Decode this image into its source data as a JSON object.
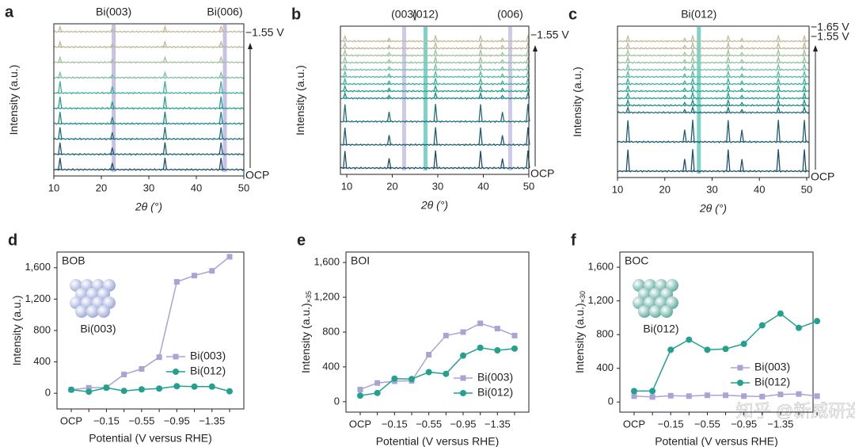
{
  "chart_data": [
    {
      "type": "xrd",
      "letter": "a",
      "ylabel": "Intensity (a.u.)",
      "xlabel": "2θ (°)",
      "xlim": [
        10,
        50
      ],
      "xticks": [
        10,
        20,
        30,
        40,
        50
      ],
      "bands": [
        {
          "x": 22.6,
          "label": "Bi(003)",
          "color": "#b9b2dd"
        },
        {
          "x": 46,
          "label": "Bi(006)",
          "color": "#b9b2dd"
        }
      ],
      "top_labels": [
        "−1.55 V"
      ],
      "bottom_label": "OCP",
      "peaks": [
        11.3,
        22.3,
        33.4,
        45.2
      ],
      "traces": [
        "#1d4f6a",
        "#1f5c74",
        "#20707c",
        "#218a88",
        "#25a092",
        "#3fb0a0",
        "#7cc0a8",
        "#a8bfa0",
        "#bcb79a",
        "#c9b99c"
      ]
    },
    {
      "type": "xrd",
      "letter": "b",
      "ylabel": "Intensity (a.u.)",
      "xlabel": "2θ (°)",
      "xlim": [
        8.6,
        50
      ],
      "xticks": [
        10,
        20,
        30,
        40,
        50
      ],
      "bands": [
        {
          "x": 22.6,
          "label": "(003)",
          "color": "#c3bce3"
        },
        {
          "x": 27.3,
          "label": "(012)",
          "color": "#5cc8b8"
        },
        {
          "x": 45.9,
          "label": "(006)",
          "color": "#c3bce3"
        }
      ],
      "top_labels": [
        "−1.55 V"
      ],
      "bottom_label": "OCP",
      "peaks": [
        9.6,
        19.3,
        29.5,
        39.4,
        44.2,
        49.8
      ],
      "traces": [
        "#1d4f6a",
        "#1f5c74",
        "#20707c",
        "#218a88",
        "#25a092",
        "#3fb0a0",
        "#5cb8a4",
        "#7cc0a8",
        "#98c0a2",
        "#a8bfa0",
        "#bcb79a",
        "#c9b99c"
      ]
    },
    {
      "type": "xrd",
      "letter": "c",
      "ylabel": "Intensity (a.u.)",
      "xlabel": "2θ (°)",
      "xlim": [
        10,
        50.5
      ],
      "xticks": [
        10,
        20,
        30,
        40,
        50
      ],
      "bands": [
        {
          "x": 27.2,
          "label": "Bi(012)",
          "color": "#5cc8b8"
        }
      ],
      "top_labels": [
        "−1.65 V",
        "−1.55 V"
      ],
      "bottom_label": "OCP",
      "peaks": [
        12.2,
        24.2,
        25.9,
        33.4,
        36.3,
        44,
        49.5
      ],
      "traces": [
        "#1d4f6a",
        "#1f5c74",
        "#20707c",
        "#218a88",
        "#25a092",
        "#2fa898",
        "#3fb0a0",
        "#5cb8a4",
        "#7cc0a8",
        "#98c0a2",
        "#a8bfa0",
        "#bcb79a",
        "#c9b99c"
      ]
    },
    {
      "type": "line",
      "letter": "d",
      "name": "BOB",
      "inset_label": "Bi(003)",
      "ylabel": "Intensity (a.u.)",
      "xlabel": "Potential (V versus RHE)",
      "categories": [
        "OCP",
        null,
        "−0.15",
        null,
        "−0.55",
        null,
        "−0.95",
        null,
        "−1.35",
        null
      ],
      "ylim": [
        -200,
        1800
      ],
      "yticks": [
        0,
        {
          "value": 400,
          "label": "400"
        },
        800,
        {
          "value": 1200,
          "label": "1,200"
        },
        {
          "value": 1600,
          "label": "1,600"
        }
      ],
      "series": [
        {
          "name": "Bi(003)",
          "color": "#a9a3d6",
          "marker": "square",
          "values": [
            45,
            70,
            75,
            240,
            310,
            460,
            1420,
            1500,
            1560,
            1740
          ]
        },
        {
          "name": "Bi(012)",
          "color": "#23a08e",
          "marker": "circle",
          "values": [
            45,
            20,
            70,
            30,
            50,
            60,
            90,
            85,
            85,
            25
          ]
        }
      ]
    },
    {
      "type": "line",
      "letter": "e",
      "name": "BOI",
      "ylabel": "Intensity (a.u.)",
      "ylabel_sub": "×35",
      "xlabel": "Potential (V versus RHE)",
      "categories": [
        "OCP",
        null,
        "−0.15",
        null,
        "−0.55",
        null,
        "−0.95",
        null,
        "−1.35",
        null
      ],
      "ylim": [
        -120,
        1720
      ],
      "yticks": [
        0,
        400,
        800,
        {
          "value": 1200,
          "label": "1,200"
        },
        {
          "value": 1600,
          "label": "1,600"
        }
      ],
      "series": [
        {
          "name": "Bi(003)",
          "color": "#a9a3d6",
          "marker": "square",
          "values": [
            140,
            215,
            235,
            240,
            540,
            760,
            800,
            900,
            840,
            760
          ]
        },
        {
          "name": "Bi(012)",
          "color": "#23a08e",
          "marker": "circle",
          "values": [
            70,
            100,
            265,
            260,
            340,
            320,
            530,
            620,
            590,
            610
          ]
        }
      ]
    },
    {
      "type": "line",
      "letter": "f",
      "name": "BOC",
      "inset_label": "Bi(012)",
      "ylabel": "Intensity (a.u.)",
      "ylabel_sub": "×30",
      "xlabel": "Potential (V versus RHE)",
      "categories": [
        "OCP",
        null,
        "−0.15",
        null,
        "−0.55",
        null,
        "−0.95",
        null,
        "−1.35",
        null,
        null
      ],
      "ylim": [
        -120,
        1780
      ],
      "yticks": [
        0,
        400,
        800,
        {
          "value": 1200,
          "label": "1,200"
        },
        {
          "value": 1600,
          "label": "1,600"
        }
      ],
      "series": [
        {
          "name": "Bi(003)",
          "color": "#a9a3d6",
          "marker": "square",
          "values": [
            70,
            60,
            75,
            70,
            80,
            80,
            70,
            65,
            90,
            95,
            70
          ]
        },
        {
          "name": "Bi(012)",
          "color": "#23a08e",
          "marker": "circle",
          "values": [
            130,
            130,
            620,
            740,
            620,
            630,
            690,
            910,
            1050,
            880,
            960
          ]
        }
      ]
    }
  ],
  "watermark": "知乎 @新威研选"
}
